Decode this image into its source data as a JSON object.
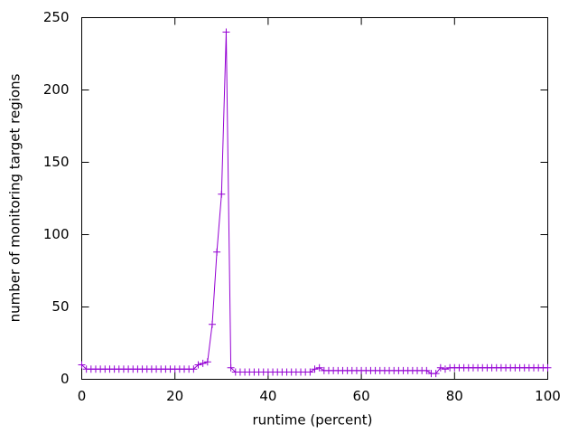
{
  "chart_data": {
    "type": "line",
    "xlabel": "runtime (percent)",
    "ylabel": "number of monitoring target regions",
    "x": [
      0,
      1,
      2,
      3,
      4,
      5,
      6,
      7,
      8,
      9,
      10,
      11,
      12,
      13,
      14,
      15,
      16,
      17,
      18,
      19,
      20,
      21,
      22,
      23,
      24,
      25,
      26,
      27,
      28,
      29,
      30,
      31,
      32,
      33,
      34,
      35,
      36,
      37,
      38,
      39,
      40,
      41,
      42,
      43,
      44,
      45,
      46,
      47,
      48,
      49,
      50,
      51,
      52,
      53,
      54,
      55,
      56,
      57,
      58,
      59,
      60,
      61,
      62,
      63,
      64,
      65,
      66,
      67,
      68,
      69,
      70,
      71,
      72,
      73,
      74,
      75,
      76,
      77,
      78,
      79,
      80,
      81,
      82,
      83,
      84,
      85,
      86,
      87,
      88,
      89,
      90,
      91,
      92,
      93,
      94,
      95,
      96,
      97,
      98,
      99,
      100
    ],
    "series": [
      {
        "color": "#9400d3",
        "values": [
          10,
          7,
          7,
          7,
          7,
          7,
          7,
          7,
          7,
          7,
          7,
          7,
          7,
          7,
          7,
          7,
          7,
          7,
          7,
          7,
          7,
          7,
          7,
          7,
          7,
          10,
          11,
          12,
          38,
          88,
          128,
          240,
          8,
          5,
          5,
          5,
          5,
          5,
          5,
          5,
          5,
          5,
          5,
          5,
          5,
          5,
          5,
          5,
          5,
          5,
          7,
          8,
          6,
          6,
          6,
          6,
          6,
          6,
          6,
          6,
          6,
          6,
          6,
          6,
          6,
          6,
          6,
          6,
          6,
          6,
          6,
          6,
          6,
          6,
          6,
          4,
          4,
          8,
          7,
          8,
          8,
          8,
          8,
          8,
          8,
          8,
          8,
          8,
          8,
          8,
          8,
          8,
          8,
          8,
          8,
          8,
          8,
          8,
          8,
          8,
          8
        ]
      }
    ],
    "xlim": [
      0,
      100
    ],
    "xticks": [
      0,
      20,
      40,
      60,
      80,
      100
    ],
    "ylim": [
      0,
      250
    ],
    "yticks": [
      0,
      50,
      100,
      150,
      200,
      250
    ]
  }
}
